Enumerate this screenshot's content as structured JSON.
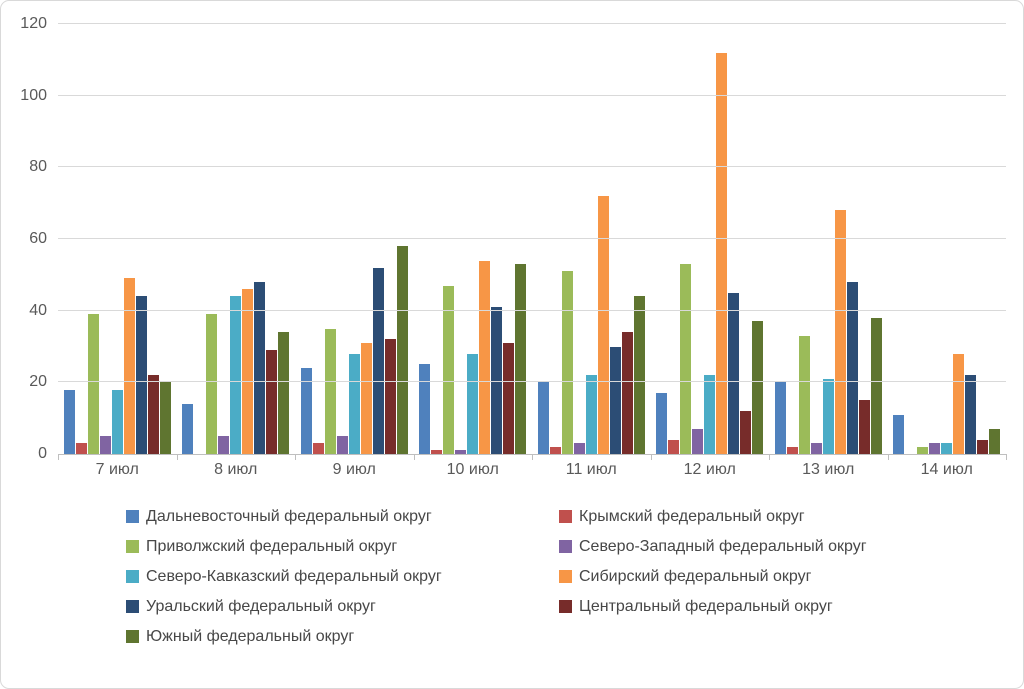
{
  "chart_data": {
    "type": "bar",
    "title": "",
    "categories": [
      "7 июл",
      "8 июл",
      "9 июл",
      "10 июл",
      "11 июл",
      "12 июл",
      "13 июл",
      "14 июл"
    ],
    "series": [
      {
        "name": "Дальневосточный федеральный округ",
        "color": "#4F81BD",
        "values": [
          18,
          14,
          24,
          25,
          20,
          17,
          20,
          11
        ]
      },
      {
        "name": "Крымский федеральный округ",
        "color": "#C0504D",
        "values": [
          3,
          0,
          3,
          1,
          2,
          4,
          2,
          0
        ]
      },
      {
        "name": "Приволжский федеральный округ",
        "color": "#9BBB59",
        "values": [
          39,
          39,
          35,
          47,
          51,
          53,
          33,
          2
        ]
      },
      {
        "name": "Северо-Западный федеральный округ",
        "color": "#8064A2",
        "values": [
          5,
          5,
          5,
          1,
          3,
          7,
          3,
          3
        ]
      },
      {
        "name": "Северо-Кавказский федеральный округ",
        "color": "#4BACC6",
        "values": [
          18,
          44,
          28,
          28,
          22,
          22,
          21,
          3
        ]
      },
      {
        "name": "Сибирский федеральный округ",
        "color": "#F79646",
        "values": [
          49,
          46,
          31,
          54,
          72,
          112,
          68,
          28
        ]
      },
      {
        "name": "Уральский федеральный округ",
        "color": "#2C4D75",
        "values": [
          44,
          48,
          52,
          41,
          30,
          45,
          48,
          22
        ]
      },
      {
        "name": "Центральный федеральный округ",
        "color": "#772C2A",
        "values": [
          22,
          29,
          32,
          31,
          34,
          12,
          15,
          4
        ]
      },
      {
        "name": "Южный федеральный округ",
        "color": "#5F7530",
        "values": [
          20,
          34,
          58,
          53,
          44,
          37,
          38,
          7
        ]
      }
    ],
    "ylim": [
      0,
      120
    ],
    "yticks": [
      0,
      20,
      40,
      60,
      80,
      100,
      120
    ],
    "grid": "horizontal",
    "legend_position": "bottom",
    "legend_columns": 2
  },
  "colors": {
    "background": "#FFFFFF",
    "border": "#D9D9D9",
    "gridline": "#D9D9D9",
    "axis_line": "#BFBFBF",
    "axis_text": "#595959",
    "legend_text": "#474747"
  }
}
